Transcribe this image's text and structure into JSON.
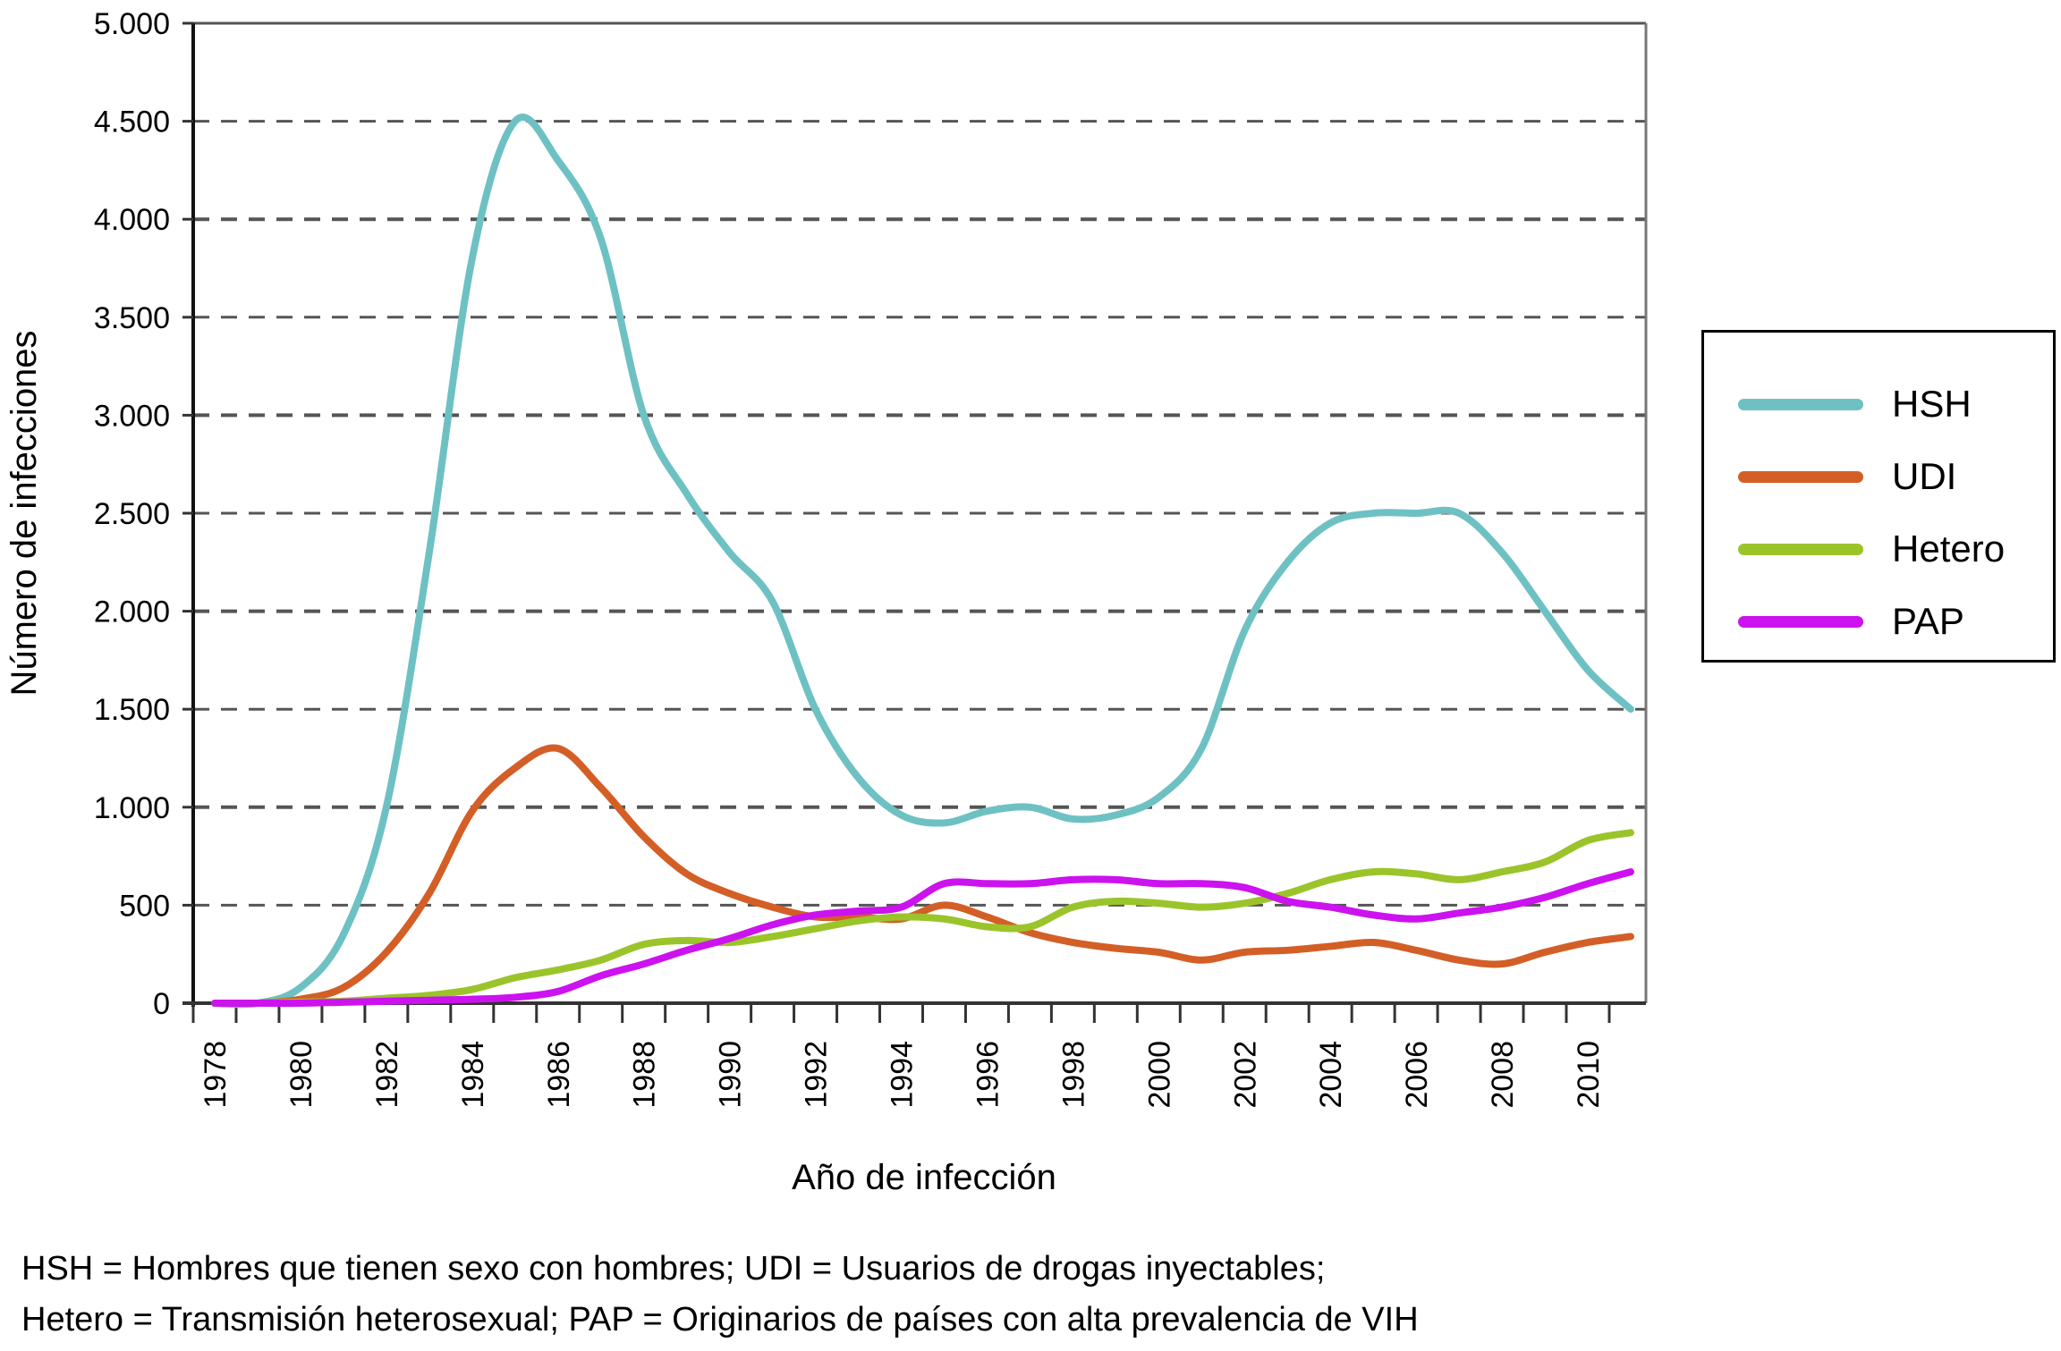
{
  "chart_data": {
    "type": "line",
    "title": "",
    "xlabel": "Año de infección",
    "ylabel": "Número de infecciones",
    "xlim": [
      1978,
      2011
    ],
    "ylim": [
      0,
      5000
    ],
    "grid": "horizontal-dashed",
    "legend_position": "right",
    "x_tick_labels": [
      "1978",
      "1980",
      "1982",
      "1984",
      "1986",
      "1988",
      "1990",
      "1992",
      "1994",
      "1996",
      "1998",
      "2000",
      "2002",
      "2004",
      "2006",
      "2008",
      "2010"
    ],
    "y_tick_labels": [
      "0",
      "500",
      "1.000",
      "1.500",
      "2.000",
      "2.500",
      "3.000",
      "3.500",
      "4.000",
      "4.500",
      "5.000"
    ],
    "y_tick_values": [
      0,
      500,
      1000,
      1500,
      2000,
      2500,
      3000,
      3500,
      4000,
      4500,
      5000
    ],
    "x": [
      1978,
      1979,
      1980,
      1981,
      1982,
      1983,
      1984,
      1985,
      1986,
      1987,
      1988,
      1989,
      1990,
      1991,
      1992,
      1993,
      1994,
      1995,
      1996,
      1997,
      1998,
      1999,
      2000,
      2001,
      2002,
      2003,
      2004,
      2005,
      2006,
      2007,
      2008,
      2009,
      2010,
      2011
    ],
    "series": [
      {
        "name": "HSH",
        "color": "#6ec1c3",
        "values": [
          0,
          0,
          80,
          350,
          1000,
          2300,
          3800,
          4500,
          4300,
          3900,
          3000,
          2600,
          2300,
          2050,
          1500,
          1150,
          960,
          920,
          980,
          1000,
          940,
          960,
          1050,
          1300,
          1900,
          2250,
          2450,
          2500,
          2500,
          2500,
          2300,
          2000,
          1700,
          1500
        ]
      },
      {
        "name": "UDI",
        "color": "#d35f27",
        "values": [
          0,
          0,
          20,
          80,
          260,
          560,
          980,
          1200,
          1300,
          1100,
          850,
          660,
          560,
          490,
          440,
          440,
          430,
          500,
          440,
          360,
          310,
          280,
          260,
          220,
          260,
          270,
          290,
          310,
          270,
          220,
          200,
          260,
          310,
          340
        ]
      },
      {
        "name": "Hetero",
        "color": "#9bc42b",
        "values": [
          0,
          0,
          5,
          10,
          25,
          40,
          70,
          130,
          170,
          220,
          300,
          320,
          310,
          340,
          380,
          420,
          440,
          430,
          390,
          390,
          490,
          520,
          510,
          490,
          510,
          560,
          630,
          670,
          660,
          630,
          670,
          720,
          830,
          870
        ]
      },
      {
        "name": "PAP",
        "color": "#cc12ee",
        "values": [
          0,
          0,
          0,
          5,
          10,
          15,
          20,
          30,
          60,
          140,
          200,
          270,
          330,
          400,
          450,
          470,
          490,
          610,
          610,
          610,
          630,
          630,
          610,
          610,
          590,
          520,
          490,
          450,
          430,
          460,
          490,
          540,
          610,
          670
        ]
      }
    ]
  },
  "legend": {
    "items": [
      {
        "label": "HSH",
        "color": "#6ec1c3"
      },
      {
        "label": "UDI",
        "color": "#d35f27"
      },
      {
        "label": "Hetero",
        "color": "#9bc42b"
      },
      {
        "label": "PAP",
        "color": "#cc12ee"
      }
    ]
  },
  "footnote": {
    "line1": "HSH = Hombres que tienen sexo con hombres; UDI = Usuarios de drogas inyectables;",
    "line2": "Hetero = Transmisión heterosexual; PAP = Originarios de países con alta prevalencia de VIH"
  }
}
